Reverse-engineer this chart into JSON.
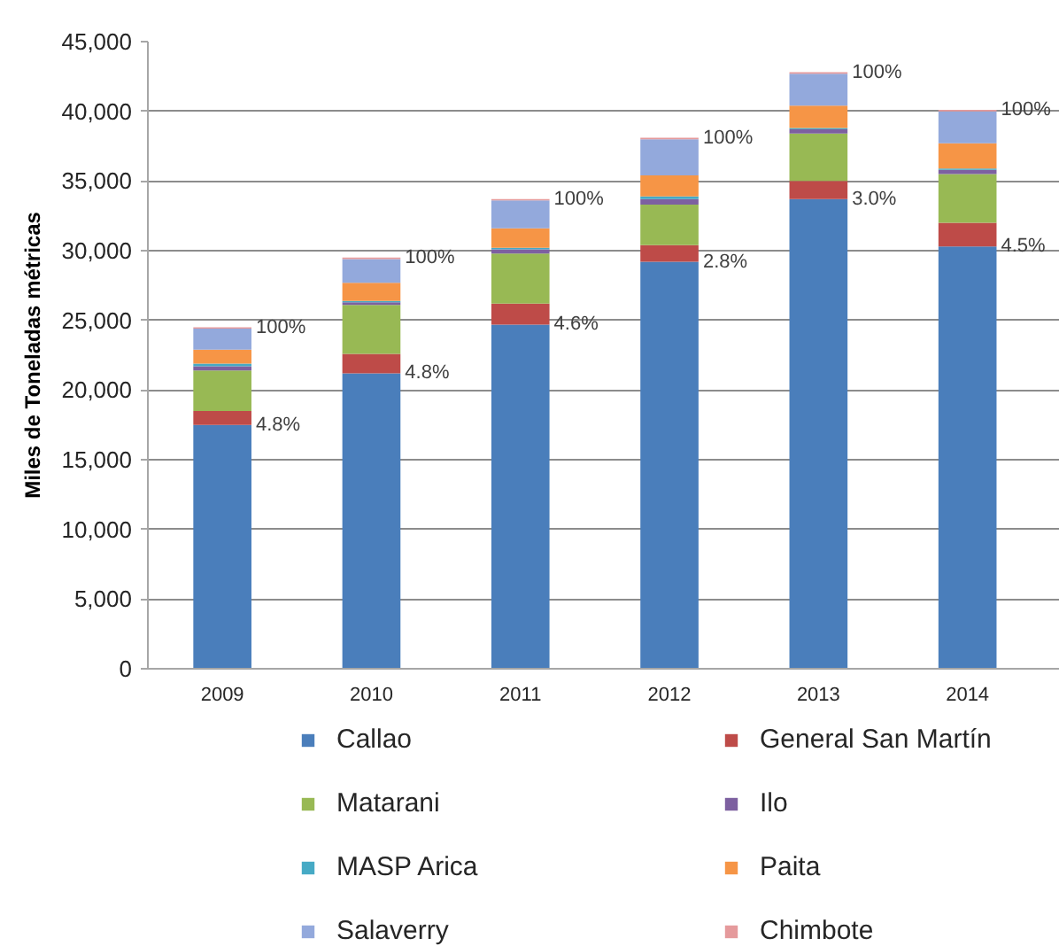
{
  "chart_data": {
    "type": "bar",
    "stacked": true,
    "ylabel": "Miles de Toneladas métricas",
    "categories": [
      "2009",
      "2010",
      "2011",
      "2012",
      "2013",
      "2014"
    ],
    "series": [
      {
        "name": "Callao",
        "color": "#4a7ebb",
        "values": [
          17500,
          21200,
          24700,
          29200,
          33700,
          30300
        ]
      },
      {
        "name": "General San Martín",
        "color": "#be4b48",
        "values": [
          1000,
          1400,
          1500,
          1200,
          1300,
          1700
        ]
      },
      {
        "name": "Matarani",
        "color": "#98b954",
        "values": [
          2900,
          3500,
          3600,
          2900,
          3400,
          3500
        ]
      },
      {
        "name": "Ilo",
        "color": "#7d60a0",
        "values": [
          300,
          200,
          300,
          400,
          300,
          300
        ]
      },
      {
        "name": "MASP Arica",
        "color": "#46aac5",
        "values": [
          200,
          100,
          100,
          200,
          100,
          100
        ]
      },
      {
        "name": "Paita",
        "color": "#f69546",
        "values": [
          1000,
          1300,
          1400,
          1500,
          1600,
          1800
        ]
      },
      {
        "name": "Salaverry",
        "color": "#93a9dc",
        "values": [
          1500,
          1700,
          2000,
          2600,
          2300,
          2300
        ]
      },
      {
        "name": "Chimbote",
        "color": "#e59a9c",
        "values": [
          100,
          100,
          100,
          100,
          100,
          100
        ]
      }
    ],
    "ylim": [
      0,
      45000
    ],
    "yticks": [
      0,
      {
        "value": 5000,
        "label": "5,000"
      },
      {
        "value": 10000,
        "label": "10,000"
      },
      {
        "value": 15000,
        "label": "15,000"
      },
      {
        "value": 20000,
        "label": "20,000"
      },
      {
        "value": 25000,
        "label": "25,000"
      },
      {
        "value": 30000,
        "label": "30,000"
      },
      {
        "value": 35000,
        "label": "35,000"
      },
      {
        "value": 40000,
        "label": "40,000"
      },
      {
        "value": 45000,
        "label": "45,000"
      }
    ],
    "grid": "y",
    "legend": "bottom",
    "annotations": [
      {
        "text": "4.8%",
        "x": "2009",
        "y": 17500
      },
      {
        "text": "100%",
        "x": "2009",
        "y": 24500
      },
      {
        "text": "4.8%",
        "x": "2010",
        "y": 21200
      },
      {
        "text": "100%",
        "x": "2010",
        "y": 29500
      },
      {
        "text": "4.6%",
        "x": "2011",
        "y": 24700
      },
      {
        "text": "100%",
        "x": "2011",
        "y": 33700
      },
      {
        "text": "2.8%",
        "x": "2012",
        "y": 29200
      },
      {
        "text": "100%",
        "x": "2012",
        "y": 38100
      },
      {
        "text": "3.0%",
        "x": "2013",
        "y": 33700
      },
      {
        "text": "100%",
        "x": "2013",
        "y": 42800
      },
      {
        "text": "4.5%",
        "x": "2014",
        "y": 30300
      },
      {
        "text": "100%",
        "x": "2014",
        "y": 40100
      }
    ]
  }
}
